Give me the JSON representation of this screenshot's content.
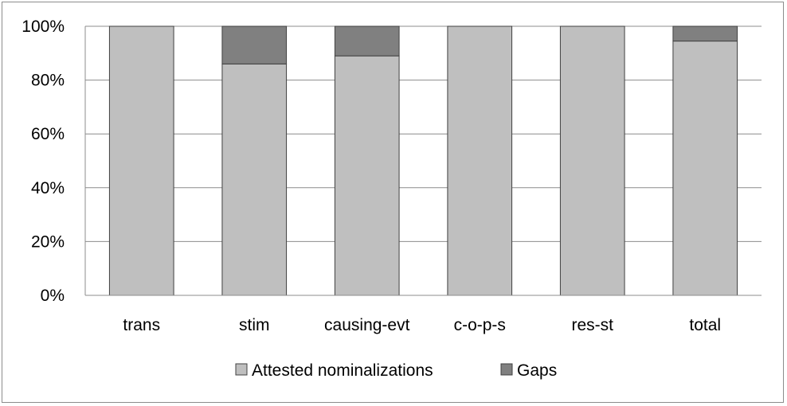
{
  "chart_data": {
    "type": "bar",
    "stacked": true,
    "normalized": true,
    "categories": [
      "trans",
      "stim",
      "causing-evt",
      "c-o-p-s",
      "res-st",
      "total"
    ],
    "series": [
      {
        "name": "Attested nominalizations",
        "values": [
          100,
          86,
          89,
          100,
          100,
          94.5
        ],
        "color": "#bfbfbf"
      },
      {
        "name": "Gaps",
        "values": [
          0,
          14,
          11,
          0,
          0,
          5.5
        ],
        "color": "#808080"
      }
    ],
    "yticks": [
      "0%",
      "20%",
      "40%",
      "60%",
      "80%",
      "100%"
    ],
    "ylim": [
      0,
      100
    ],
    "grid": true,
    "legend_position": "bottom"
  }
}
